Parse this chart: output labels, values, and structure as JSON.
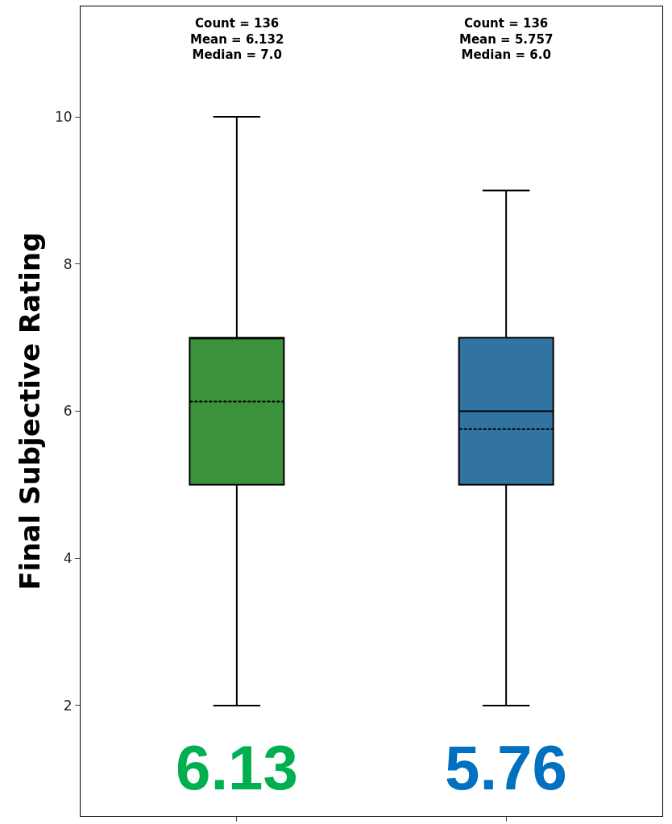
{
  "chart_data": {
    "type": "box",
    "ylabel": "Final Subjective Rating",
    "categories": [
      null,
      null
    ],
    "colors": [
      "#3a923a",
      "#3274a1"
    ],
    "boxes": [
      {
        "low": 2,
        "q1": 5,
        "median": 7,
        "q3": 7,
        "high": 10,
        "mean": 6.132
      },
      {
        "low": 2,
        "q1": 5,
        "median": 6,
        "q3": 7,
        "high": 9,
        "mean": 5.757
      }
    ],
    "ylim": [
      0.5,
      11.5
    ],
    "yticks": [
      2,
      4,
      6,
      8,
      10
    ],
    "grid": false,
    "annotations": [
      "Count = 136\nMean = 6.132\nMedian = 7.0",
      "Count = 136\nMean = 5.757\nMedian = 6.0",
      "6.13",
      "5.76"
    ]
  }
}
